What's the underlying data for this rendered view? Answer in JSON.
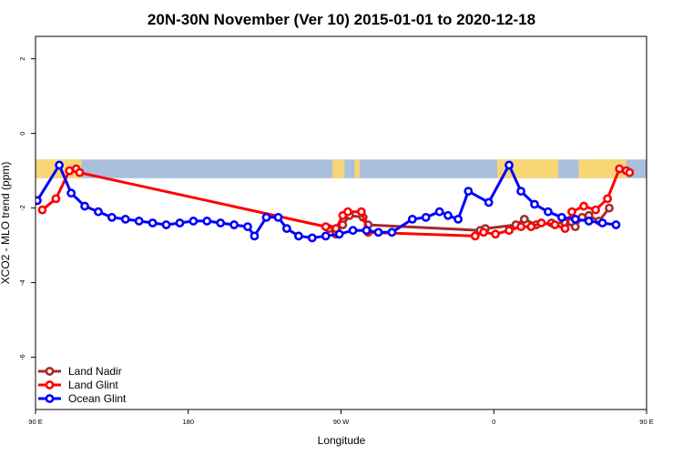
{
  "chart_data": {
    "type": "line",
    "title": "20N-30N November (Ver 10)   2015-01-01 to 2020-12-18",
    "xlabel": "Longitude",
    "ylabel": "XCO2 - MLO trend (ppm)",
    "xlim": [
      90,
      450
    ],
    "ylim": [
      -7.4,
      2.6
    ],
    "x_ticks": [
      {
        "value": 90,
        "label": "90 E"
      },
      {
        "value": 180,
        "label": "180"
      },
      {
        "value": 270,
        "label": "90 W"
      },
      {
        "value": 360,
        "label": "0"
      },
      {
        "value": 450,
        "label": "90 E"
      },
      {
        "value": 540,
        "label": "180"
      }
    ],
    "y_ticks": [
      {
        "value": 2,
        "label": "2"
      },
      {
        "value": 0,
        "label": "0"
      },
      {
        "value": -2,
        "label": "-2"
      },
      {
        "value": -4,
        "label": "-4"
      },
      {
        "value": -6,
        "label": "-6"
      }
    ],
    "map_band": {
      "y_top": -0.7,
      "y_bottom": -1.2,
      "ocean_color": "#a9bfdd",
      "land_color": "#f7d676"
    },
    "legend_position": "bottom-left",
    "series": [
      {
        "name": "Land Nadir",
        "color": "#a52a2a",
        "points": [
          [
            263,
            -2.55
          ],
          [
            267,
            -2.7
          ],
          [
            271,
            -2.45
          ],
          [
            275,
            -2.2
          ],
          [
            283,
            -2.25
          ],
          [
            286,
            -2.45
          ],
          [
            352,
            -2.6
          ],
          [
            355,
            -2.55
          ],
          [
            373,
            -2.45
          ],
          [
            378,
            -2.3
          ],
          [
            385,
            -2.45
          ],
          [
            394,
            -2.4
          ],
          [
            402,
            -2.4
          ],
          [
            408,
            -2.5
          ],
          [
            412,
            -2.25
          ],
          [
            416,
            -2.2
          ],
          [
            422,
            -2.35
          ],
          [
            428,
            -2.0
          ]
        ]
      },
      {
        "name": "Land Glint",
        "color": "#ff0000",
        "points": [
          [
            94,
            -2.05
          ],
          [
            102,
            -1.75
          ],
          [
            110,
            -1.0
          ],
          [
            114,
            -0.95
          ],
          [
            116,
            -1.05
          ],
          [
            261,
            -2.5
          ],
          [
            267,
            -2.55
          ],
          [
            271,
            -2.2
          ],
          [
            274,
            -2.1
          ],
          [
            282,
            -2.1
          ],
          [
            286,
            -2.65
          ],
          [
            349,
            -2.75
          ],
          [
            354,
            -2.65
          ],
          [
            361,
            -2.7
          ],
          [
            369,
            -2.6
          ],
          [
            376,
            -2.5
          ],
          [
            382,
            -2.5
          ],
          [
            388,
            -2.4
          ],
          [
            396,
            -2.45
          ],
          [
            402,
            -2.55
          ],
          [
            406,
            -2.1
          ],
          [
            413,
            -1.95
          ],
          [
            420,
            -2.05
          ],
          [
            427,
            -1.75
          ],
          [
            434,
            -0.95
          ],
          [
            438,
            -1.0
          ],
          [
            440,
            -1.05
          ]
        ]
      },
      {
        "name": "Ocean Glint",
        "color": "#0000ff",
        "points": [
          [
            91,
            -1.8
          ],
          [
            104,
            -0.85
          ],
          [
            111,
            -1.6
          ],
          [
            119,
            -1.95
          ],
          [
            127,
            -2.1
          ],
          [
            135,
            -2.25
          ],
          [
            143,
            -2.3
          ],
          [
            151,
            -2.35
          ],
          [
            159,
            -2.4
          ],
          [
            167,
            -2.45
          ],
          [
            175,
            -2.4
          ],
          [
            183,
            -2.35
          ],
          [
            191,
            -2.35
          ],
          [
            199,
            -2.4
          ],
          [
            207,
            -2.45
          ],
          [
            215,
            -2.5
          ],
          [
            219,
            -2.75
          ],
          [
            226,
            -2.25
          ],
          [
            233,
            -2.25
          ],
          [
            238,
            -2.55
          ],
          [
            245,
            -2.75
          ],
          [
            253,
            -2.8
          ],
          [
            261,
            -2.75
          ],
          [
            269,
            -2.7
          ],
          [
            277,
            -2.6
          ],
          [
            285,
            -2.6
          ],
          [
            292,
            -2.65
          ],
          [
            300,
            -2.65
          ],
          [
            312,
            -2.3
          ],
          [
            320,
            -2.25
          ],
          [
            328,
            -2.1
          ],
          [
            333,
            -2.2
          ],
          [
            339,
            -2.3
          ],
          [
            345,
            -1.55
          ],
          [
            357,
            -1.85
          ],
          [
            369,
            -0.85
          ],
          [
            376,
            -1.55
          ],
          [
            384,
            -1.9
          ],
          [
            392,
            -2.1
          ],
          [
            400,
            -2.25
          ],
          [
            408,
            -2.3
          ],
          [
            416,
            -2.35
          ],
          [
            424,
            -2.4
          ],
          [
            432,
            -2.45
          ]
        ]
      }
    ]
  }
}
